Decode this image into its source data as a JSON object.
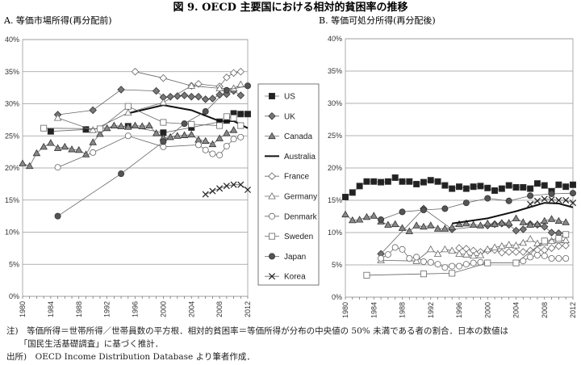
{
  "figure": {
    "title": "図 9.  OECD 主要国における相対的貧困率の推移",
    "notes": [
      "注)　等価所得＝世帯所得／世帯員数の平方根．相対的貧困率＝等価所得が分布の中央値の 50% 未満である者の割合．日本の数値は",
      "　　「国民生活基礎調査」に基づく推計．",
      "出所)　OECD Income Distribution Database より筆者作成．"
    ]
  },
  "chart_data": [
    {
      "type": "line",
      "title": "A. 等価市場所得(再分配前)",
      "xlim": [
        1980,
        2012
      ],
      "ylim": [
        0,
        40
      ],
      "x_ticks": [
        "1980",
        "1984",
        "1988",
        "1992",
        "1996",
        "2000",
        "2004",
        "2008",
        "2012"
      ],
      "y_ticks": [
        "0%",
        "5%",
        "10%",
        "15%",
        "20%",
        "25%",
        "30%",
        "35%",
        "40%"
      ],
      "grid": true,
      "legend": "right",
      "series": [
        {
          "name": "US",
          "marker": "square-filled",
          "color": "#222222",
          "x": [
            1984,
            1989,
            1995,
            2000,
            2004,
            2008,
            2009,
            2010,
            2011,
            2012
          ],
          "y": [
            25.7,
            26.0,
            26.5,
            25.5,
            26.3,
            27.2,
            27.4,
            28.5,
            28.4,
            28.4
          ]
        },
        {
          "name": "UK",
          "marker": "diamond-filled",
          "color": "#777777",
          "x": [
            1985,
            1990,
            1994,
            1999,
            2000,
            2001,
            2002,
            2003,
            2004,
            2005,
            2006,
            2007,
            2008,
            2009,
            2010,
            2011
          ],
          "y": [
            28.3,
            29.0,
            32.2,
            32.0,
            31.0,
            31.1,
            31.2,
            31.3,
            31.1,
            31.1,
            30.7,
            30.8,
            31.4,
            31.5,
            32.0,
            31.3
          ]
        },
        {
          "name": "Canada",
          "marker": "triangle-filled",
          "color": "#888888",
          "x": [
            1980,
            1981,
            1982,
            1983,
            1984,
            1985,
            1986,
            1987,
            1988,
            1989,
            1990,
            1991,
            1992,
            1993,
            1994,
            1995,
            1996,
            1997,
            1998,
            1999,
            2000,
            2001,
            2002,
            2003,
            2004,
            2005,
            2006,
            2007,
            2008,
            2009,
            2010
          ],
          "y": [
            20.7,
            20.3,
            22.3,
            23.3,
            23.9,
            23.1,
            23.3,
            22.9,
            22.8,
            22.1,
            24.0,
            25.3,
            26.2,
            26.6,
            26.5,
            26.4,
            26.6,
            26.5,
            26.6,
            25.4,
            24.7,
            24.8,
            25.0,
            25.1,
            25.2,
            24.4,
            24.2,
            23.7,
            24.6,
            25.4,
            25.9
          ]
        },
        {
          "name": "Australia",
          "marker": "none",
          "color": "#111111",
          "x": [
            1995,
            2000,
            2004,
            2008,
            2010,
            2012
          ],
          "y": [
            28.5,
            29.8,
            29.0,
            27.3,
            27.3,
            26.2
          ]
        },
        {
          "name": "France",
          "marker": "diamond-open",
          "color": "#777777",
          "x": [
            1996,
            2000,
            2004,
            2005,
            2008,
            2009,
            2010,
            2011
          ],
          "y": [
            35.0,
            34.0,
            32.8,
            33.1,
            32.7,
            34.1,
            34.8,
            35.0
          ]
        },
        {
          "name": "Germany",
          "marker": "triangle-open",
          "color": "#777777",
          "x": [
            1985,
            1990,
            1995,
            2000,
            2004,
            2008,
            2010,
            2011
          ],
          "y": [
            27.8,
            25.9,
            28.6,
            30.2,
            32.8,
            32.4,
            32.4,
            33.0
          ]
        },
        {
          "name": "Denmark",
          "marker": "circle-open",
          "color": "#777777",
          "x": [
            1985,
            1990,
            1995,
            2000,
            2005,
            2006,
            2007,
            2008,
            2009,
            2010,
            2011
          ],
          "y": [
            20.1,
            22.4,
            25.0,
            23.3,
            23.6,
            22.8,
            22.2,
            22.0,
            23.4,
            24.5,
            24.8
          ]
        },
        {
          "name": "Sweden",
          "marker": "square-open",
          "color": "#777777",
          "x": [
            1983,
            1991,
            1995,
            2000,
            2004,
            2008,
            2009,
            2010,
            2011
          ],
          "y": [
            26.2,
            26.1,
            29.6,
            27.1,
            26.8,
            26.6,
            28.0,
            27.8,
            26.6
          ]
        },
        {
          "name": "Japan",
          "marker": "circle-filled",
          "color": "#555555",
          "x": [
            1985,
            1994,
            2000,
            2003,
            2006,
            2009,
            2012
          ],
          "y": [
            12.5,
            19.1,
            24.1,
            26.9,
            28.8,
            32.1,
            32.8
          ]
        },
        {
          "name": "Korea",
          "marker": "x",
          "color": "#222222",
          "x": [
            2006,
            2007,
            2008,
            2009,
            2010,
            2011,
            2012
          ],
          "y": [
            15.9,
            16.4,
            16.8,
            17.2,
            17.4,
            17.4,
            16.6
          ]
        }
      ]
    },
    {
      "type": "line",
      "title": "B. 等価可処分所得(再分配後)",
      "xlim": [
        1980,
        2012
      ],
      "ylim": [
        0,
        40
      ],
      "x_ticks": [
        "1980",
        "1984",
        "1988",
        "1992",
        "1996",
        "2000",
        "2004",
        "2008",
        "2012"
      ],
      "y_ticks": [
        "0%",
        "5%",
        "10%",
        "15%",
        "20%",
        "25%",
        "30%",
        "35%",
        "40%"
      ],
      "grid": true,
      "series": [
        {
          "name": "US",
          "marker": "square-filled",
          "color": "#222222",
          "x": [
            1980,
            1981,
            1982,
            1983,
            1984,
            1985,
            1986,
            1987,
            1988,
            1989,
            1990,
            1991,
            1992,
            1993,
            1994,
            1995,
            1996,
            1997,
            1998,
            1999,
            2000,
            2001,
            2002,
            2003,
            2004,
            2005,
            2006,
            2007,
            2008,
            2009,
            2010,
            2011,
            2012
          ],
          "y": [
            15.5,
            16.2,
            17.2,
            17.9,
            17.9,
            17.8,
            17.9,
            18.5,
            17.9,
            17.9,
            17.5,
            17.8,
            18.1,
            17.9,
            17.3,
            16.8,
            17.1,
            16.8,
            17.1,
            17.2,
            16.9,
            16.5,
            16.8,
            17.3,
            17.0,
            17.0,
            16.8,
            17.6,
            17.3,
            16.4,
            17.4,
            17.1,
            17.4
          ]
        },
        {
          "name": "UK",
          "marker": "diamond-filled",
          "color": "#777777",
          "x": [
            1985,
            1991,
            1995,
            2000,
            2001,
            2002,
            2003,
            2004,
            2005,
            2006,
            2007,
            2008,
            2009,
            2010
          ],
          "y": [
            6.7,
            13.7,
            10.5,
            11.1,
            11.3,
            11.4,
            11.2,
            10.3,
            10.5,
            11.3,
            11.2,
            10.9,
            10.0,
            9.9
          ]
        },
        {
          "name": "Canada",
          "marker": "triangle-filled",
          "color": "#888888",
          "x": [
            1980,
            1981,
            1982,
            1983,
            1984,
            1985,
            1986,
            1987,
            1988,
            1989,
            1990,
            1991,
            1992,
            1993,
            1994,
            1995,
            1996,
            1997,
            1998,
            1999,
            2000,
            2001,
            2002,
            2003,
            2004,
            2005,
            2006,
            2007,
            2008,
            2009,
            2010,
            2011
          ],
          "y": [
            12.8,
            11.9,
            12.0,
            12.4,
            12.6,
            11.7,
            11.2,
            11.3,
            10.7,
            10.2,
            11.1,
            10.9,
            11.1,
            10.6,
            10.6,
            10.8,
            11.3,
            11.4,
            11.2,
            11.1,
            11.4,
            11.3,
            11.5,
            11.5,
            12.2,
            11.6,
            11.2,
            11.3,
            11.8,
            12.1,
            11.8,
            11.6
          ]
        },
        {
          "name": "Australia",
          "marker": "none",
          "color": "#111111",
          "x": [
            1995,
            2000,
            2004,
            2008,
            2010,
            2012
          ],
          "y": [
            11.4,
            12.2,
            13.3,
            14.6,
            14.5,
            13.9
          ]
        },
        {
          "name": "France",
          "marker": "diamond-open",
          "color": "#777777",
          "x": [
            1996,
            1997,
            1998,
            1999,
            2000,
            2001,
            2002,
            2003,
            2004,
            2005,
            2006,
            2007,
            2008,
            2009,
            2010,
            2011
          ],
          "y": [
            7.6,
            7.5,
            7.2,
            7.0,
            7.2,
            7.3,
            6.9,
            7.0,
            7.0,
            7.0,
            7.2,
            7.3,
            7.3,
            7.6,
            7.9,
            8.0
          ]
        },
        {
          "name": "Germany",
          "marker": "triangle-open",
          "color": "#777777",
          "x": [
            1985,
            1990,
            1992,
            1993,
            1994,
            1995,
            1996,
            1997,
            1998,
            1999,
            2000,
            2001,
            2002,
            2003,
            2004,
            2005,
            2006,
            2007,
            2008,
            2009,
            2010,
            2011
          ],
          "y": [
            5.7,
            5.6,
            7.4,
            6.7,
            7.4,
            7.2,
            6.7,
            6.6,
            6.4,
            6.5,
            7.4,
            7.7,
            7.9,
            8.1,
            8.0,
            8.4,
            9.0,
            8.3,
            8.4,
            8.7,
            8.8,
            8.8
          ]
        },
        {
          "name": "Denmark",
          "marker": "circle-open",
          "color": "#777777",
          "x": [
            1985,
            1986,
            1987,
            1988,
            1989,
            1990,
            1991,
            1992,
            1993,
            1994,
            1995,
            1996,
            1997,
            1998,
            1999,
            2000,
            2004,
            2005,
            2006,
            2007,
            2008,
            2009,
            2010,
            2011
          ],
          "y": [
            6.0,
            6.6,
            7.7,
            7.4,
            6.0,
            6.2,
            5.5,
            5.4,
            5.1,
            4.6,
            4.8,
            4.8,
            5.1,
            5.3,
            5.4,
            5.3,
            5.3,
            5.6,
            6.2,
            6.5,
            6.4,
            6.0,
            6.0,
            6.0
          ]
        },
        {
          "name": "Sweden",
          "marker": "square-open",
          "color": "#777777",
          "x": [
            1983,
            1991,
            1995,
            2000,
            2004,
            2008,
            2010,
            2011
          ],
          "y": [
            3.4,
            3.6,
            3.7,
            5.3,
            5.3,
            8.7,
            9.1,
            9.7
          ]
        },
        {
          "name": "Japan",
          "marker": "circle-filled",
          "color": "#555555",
          "x": [
            1985,
            1988,
            1991,
            1994,
            1997,
            2000,
            2003,
            2006,
            2009,
            2012
          ],
          "y": [
            12.0,
            13.2,
            13.5,
            13.7,
            14.6,
            15.3,
            14.9,
            15.7,
            16.0,
            16.1
          ]
        },
        {
          "name": "Korea",
          "marker": "x",
          "color": "#222222",
          "x": [
            2006,
            2007,
            2008,
            2009,
            2010,
            2011,
            2012
          ],
          "y": [
            14.4,
            14.9,
            15.2,
            15.1,
            15.0,
            15.0,
            14.6
          ]
        }
      ]
    }
  ]
}
